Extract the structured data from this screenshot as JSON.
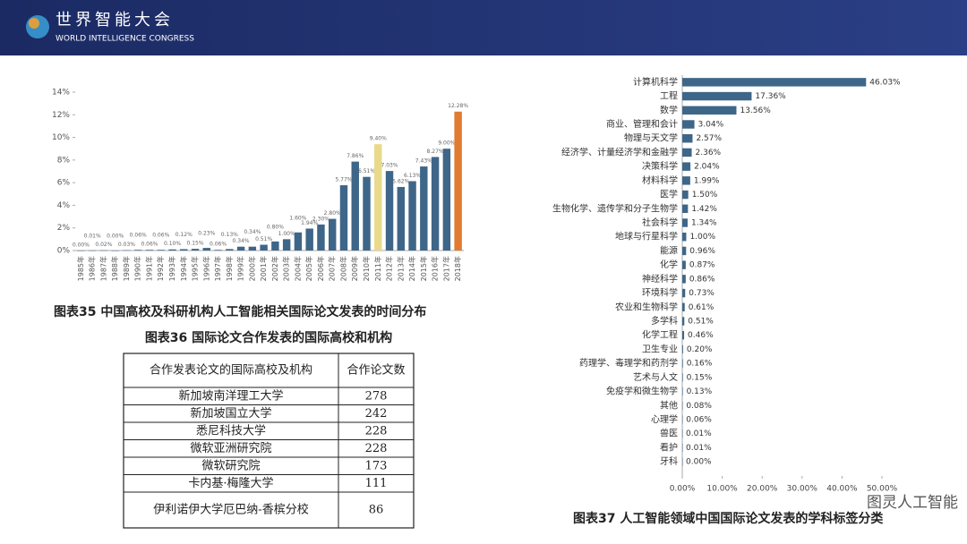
{
  "header": {
    "title": "世界智能大会",
    "subtitle": "WORLD INTELLIGENCE CONGRESS"
  },
  "watermark": "图灵人工智能",
  "chart_data": [
    {
      "type": "bar",
      "title": "图表35 中国高校及科研机构人工智能相关国际论文发表的时间分布",
      "categories": [
        "1985年",
        "1986年",
        "1987年",
        "1988年",
        "1989年",
        "1990年",
        "1991年",
        "1992年",
        "1993年",
        "1994年",
        "1995年",
        "1996年",
        "1997年",
        "1998年",
        "1999年",
        "2000年",
        "2001年",
        "2002年",
        "2003年",
        "2004年",
        "2005年",
        "2006年",
        "2007年",
        "2008年",
        "2009年",
        "2010年",
        "2011年",
        "2012年",
        "2013年",
        "2014年",
        "2015年",
        "2016年",
        "2017年",
        "2018年"
      ],
      "values": [
        0.0,
        0.01,
        0.02,
        0.0,
        0.03,
        0.06,
        0.06,
        0.06,
        0.1,
        0.12,
        0.15,
        0.23,
        0.06,
        0.13,
        0.34,
        0.34,
        0.51,
        0.8,
        1.0,
        1.6,
        1.94,
        2.3,
        2.8,
        5.77,
        7.86,
        6.51,
        9.4,
        7.03,
        5.62,
        6.13,
        7.43,
        8.27,
        9.0,
        12.28
      ],
      "value_labels": [
        "0.00%",
        "0.01%",
        "0.02%",
        "0.00%",
        "0.03%",
        "0.06%",
        "0.06%",
        "0.06%",
        "0.10%",
        "0.12%",
        "0.15%",
        "0.23%",
        "0.06%",
        "0.13%",
        "0.34%",
        "0.34%",
        "0.51%",
        "0.80%",
        "1.00%",
        "1.60%",
        "1.94%",
        "2.30%",
        "2.80%",
        "5.77%",
        "7.86%",
        "6.51%",
        "9.40%",
        "7.03%",
        "5.62%",
        "6.13%",
        "7.43%",
        "8.27%",
        "9.00%",
        "12.28%"
      ],
      "colors": [
        "#3e6688",
        "#3e6688",
        "#3e6688",
        "#3e6688",
        "#3e6688",
        "#3e6688",
        "#3e6688",
        "#3e6688",
        "#3e6688",
        "#3e6688",
        "#3e6688",
        "#3e6688",
        "#3e6688",
        "#3e6688",
        "#3e6688",
        "#3e6688",
        "#3e6688",
        "#3e6688",
        "#3e6688",
        "#3e6688",
        "#3e6688",
        "#3e6688",
        "#3e6688",
        "#3e6688",
        "#3e6688",
        "#3e6688",
        "#e9d98a",
        "#3e6688",
        "#3e6688",
        "#3e6688",
        "#3e6688",
        "#3e6688",
        "#3e6688",
        "#e07b30"
      ],
      "ylim": [
        0,
        14
      ],
      "yticks": [
        {
          "value": 0,
          "label": "0%"
        },
        {
          "value": 2,
          "label": "2%"
        },
        {
          "value": 4,
          "label": "4%"
        },
        {
          "value": 6,
          "label": "6%"
        },
        {
          "value": 8,
          "label": "8%"
        },
        {
          "value": 10,
          "label": "10%"
        },
        {
          "value": 12,
          "label": "12%"
        },
        {
          "value": 14,
          "label": "14%"
        }
      ],
      "grid": false
    },
    {
      "type": "barh",
      "title": "图表37 人工智能领域中国国际论文发表的学科标签分类",
      "categories": [
        "计算机科学",
        "工程",
        "数学",
        "商业、管理和会计",
        "物理与天文学",
        "经济学、计量经济学和金融学",
        "决策科学",
        "材料科学",
        "医学",
        "生物化学、遗传学和分子生物学",
        "社会科学",
        "地球与行星科学",
        "能源",
        "化学",
        "神经科学",
        "环境科学",
        "农业和生物科学",
        "多学科",
        "化学工程",
        "卫生专业",
        "药理学、毒理学和药剂学",
        "艺术与人文",
        "免疫学和微生物学",
        "其他",
        "心理学",
        "兽医",
        "看护",
        "牙科"
      ],
      "values": [
        46.03,
        17.36,
        13.56,
        3.04,
        2.57,
        2.36,
        2.04,
        1.99,
        1.5,
        1.42,
        1.34,
        1.0,
        0.96,
        0.87,
        0.86,
        0.73,
        0.61,
        0.51,
        0.46,
        0.2,
        0.16,
        0.15,
        0.13,
        0.08,
        0.06,
        0.01,
        0.01,
        0.0
      ],
      "value_labels": [
        "46.03%",
        "17.36%",
        "13.56%",
        "3.04%",
        "2.57%",
        "2.36%",
        "2.04%",
        "1.99%",
        "1.50%",
        "1.42%",
        "1.34%",
        "1.00%",
        "0.96%",
        "0.87%",
        "0.86%",
        "0.73%",
        "0.61%",
        "0.51%",
        "0.46%",
        "0.20%",
        "0.16%",
        "0.15%",
        "0.13%",
        "0.08%",
        "0.06%",
        "0.01%",
        "0.01%",
        "0.00%"
      ],
      "color": "#3e6688",
      "xlim": [
        0,
        50
      ],
      "xticks": [
        {
          "value": 0,
          "label": "0.00%"
        },
        {
          "value": 10,
          "label": "10.00%"
        },
        {
          "value": 20,
          "label": "20.00%"
        },
        {
          "value": 30,
          "label": "30.00%"
        },
        {
          "value": 40,
          "label": "40.00%"
        },
        {
          "value": 50,
          "label": "50.00%"
        }
      ],
      "grid": false
    }
  ],
  "table": {
    "title": "图表36 国际论文合作发表的国际高校和机构",
    "header": [
      "合作发表论文的国际高校及机构",
      "合作论文数"
    ],
    "rows": [
      [
        "新加坡南洋理工大学",
        278
      ],
      [
        "新加坡国立大学",
        242
      ],
      [
        "悉尼科技大学",
        228
      ],
      [
        "微软亚洲研究院",
        228
      ],
      [
        "微软研究院",
        173
      ],
      [
        "卡内基·梅隆大学",
        111
      ],
      [
        "伊利诺伊大学厄巴纳-香槟分校",
        86
      ]
    ]
  }
}
